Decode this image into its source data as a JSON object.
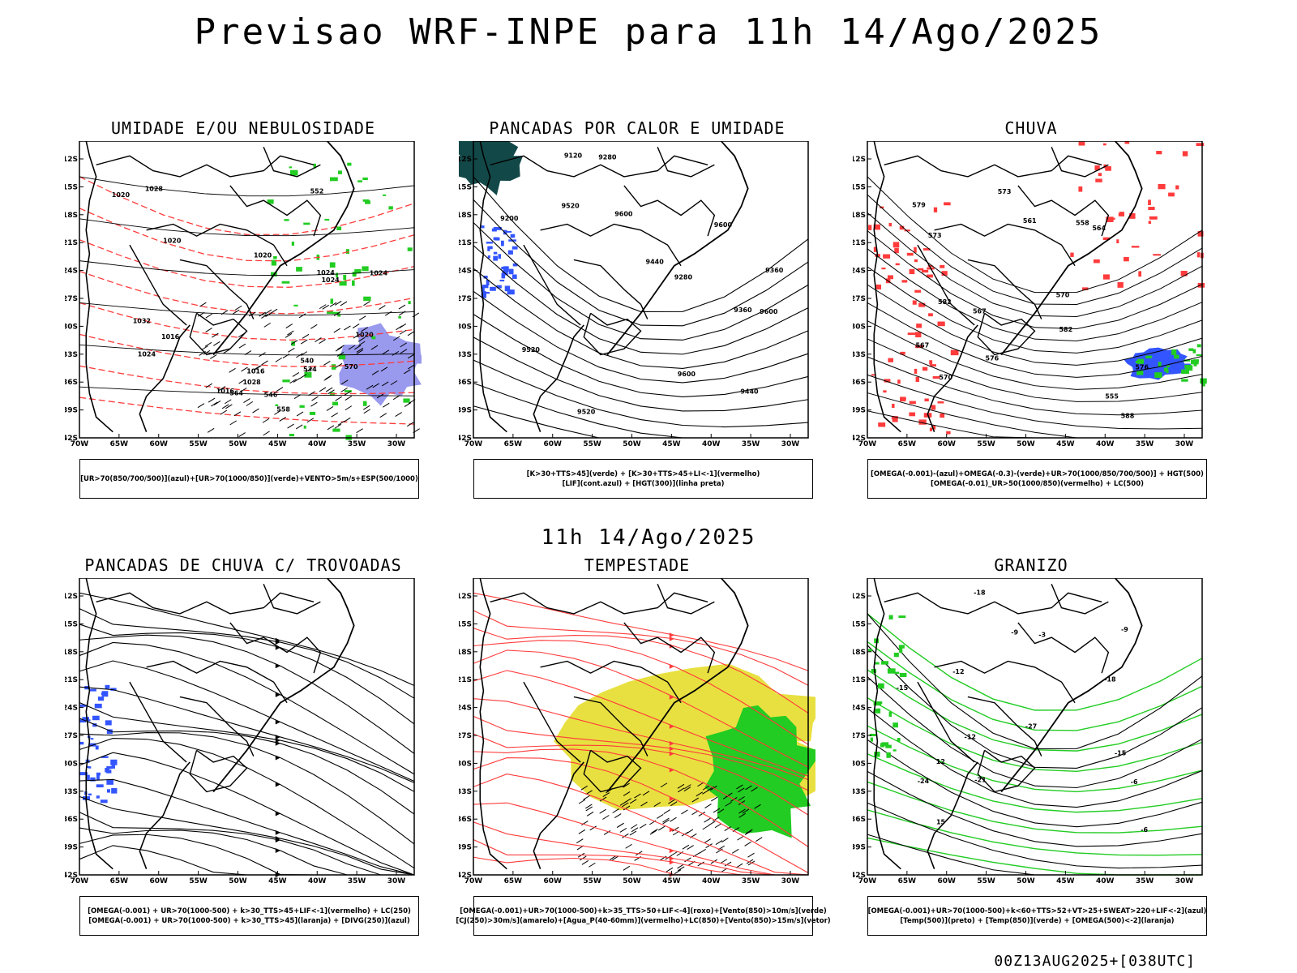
{
  "header": {
    "title": "Previsao WRF-INPE  para 11h 14/Ago/2025"
  },
  "mid_title": "11h 14/Ago/2025",
  "footer": "00Z13AUG2025+[038UTC]",
  "axes": {
    "lat_ticks": [
      "12S",
      "15S",
      "18S",
      "21S",
      "24S",
      "27S",
      "30S",
      "33S",
      "36S",
      "39S",
      "42S"
    ],
    "lon_ticks": [
      "70W",
      "65W",
      "60W",
      "55W",
      "50W",
      "45W",
      "40W",
      "35W",
      "30W"
    ]
  },
  "colors": {
    "red": "#ff3b3b",
    "green": "#22cc22",
    "blue": "#3355ff",
    "yellow": "#e8e040",
    "dark_teal": "#134848",
    "purple": "#9999ee"
  },
  "panels": [
    {
      "title": "UMIDADE E/OU NEBULOSIDADE",
      "caption": [
        "[UR>70(850/700/500)](azul)+[UR>70(1000/850)](verde)+VENTO>5m/s+ESP(500/1000)"
      ],
      "labels": [
        "1016",
        "1016",
        "1020",
        "1020",
        "1024",
        "1024",
        "1028",
        "1032",
        "1024",
        "1020",
        "1016",
        "570",
        "564",
        "558",
        "552",
        "546",
        "540",
        "534",
        "1020",
        "1024",
        "1028"
      ]
    },
    {
      "title": "PANCADAS POR CALOR E UMIDADE",
      "caption": [
        "[K>30+TTS>45](verde) + [K>30+TTS>45+LI<-1](vermelho)",
        "[LIF](cont.azul) + [HGT(300)](linha preta)"
      ],
      "labels": [
        "9600",
        "9600",
        "9600",
        "9600",
        "9520",
        "9520",
        "9440",
        "9440",
        "9360",
        "9280",
        "9200",
        "9120",
        "9520",
        "9360",
        "9280"
      ]
    },
    {
      "title": "CHUVA",
      "caption": [
        "[OMEGA(-0.001)-(azul)+OMEGA(-0.3)-(verde)+UR>70(1000/850/700/500)] + HGT(500)",
        "[OMEGA(-0.01)_UR>50(1000/850)(vermelho) + LC(500)"
      ],
      "labels": [
        "588",
        "582",
        "582",
        "579",
        "576",
        "573",
        "570",
        "567",
        "564",
        "561",
        "558",
        "555",
        "576",
        "573",
        "570",
        "567"
      ]
    },
    {
      "title": "PANCADAS DE CHUVA C/ TROVOADAS",
      "caption": [
        "[OMEGA(-0.001) + UR>70(1000-500) + k>30_TTS>45+LIF<-1](vermelho) + LC(250)",
        "[OMEGA(-0.001) + UR>70(1000-500) + k>30_TTS>45](laranja) + [DIVG(250)](azul)"
      ],
      "labels": []
    },
    {
      "title": "TEMPESTADE",
      "caption": [
        "[OMEGA(-0.001)+UR>70(1000-500)+k>35_TTS>50+LIF<-4](roxo)+[Vento(850)>10m/s](verde)",
        "[CJ(250)>30m/s](amarelo)+[Agua_P(40-60mm)](vermelho)+LC(850)+[Vento(850)>15m/s](vetor)"
      ],
      "labels": []
    },
    {
      "title": "GRANIZO",
      "caption": [
        "[OMEGA(-0.001)+UR>70(1000-500)+k<60+TTS>52+VT>25+SWEAT>220+LIF<-2](azul)",
        "[Temp(500)](preto) + [Temp(850)](verde) + [OMEGA(500)<-2](laranja)"
      ],
      "labels": [
        "-6",
        "-9",
        "-12",
        "-15",
        "-18",
        "-21",
        "-24",
        "-27",
        "-12",
        "-15",
        "-18",
        "-9",
        "-6",
        "-3",
        "15",
        "12"
      ]
    }
  ]
}
